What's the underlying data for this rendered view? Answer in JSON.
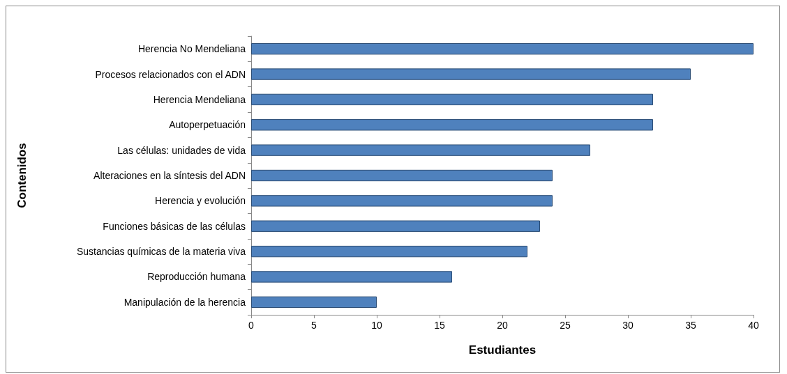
{
  "chart_data": {
    "type": "bar",
    "orientation": "horizontal",
    "xlabel": "Estudiantes",
    "ylabel": "Contenidos",
    "categories": [
      "Herencia No Mendeliana",
      "Procesos relacionados con el ADN",
      "Herencia Mendeliana",
      "Autoperpetuación",
      "Las células: unidades de vida",
      "Alteraciones en la síntesis del ADN",
      "Herencia y evolución",
      "Funciones básicas de las células",
      "Sustancias químicas de la materia viva",
      "Reproducción humana",
      "Manipulación de la herencia"
    ],
    "values": [
      40,
      35,
      32,
      32,
      27,
      24,
      24,
      23,
      22,
      16,
      10
    ],
    "color": "#4f81bd",
    "xlim": [
      0,
      40
    ],
    "xticks": [
      0,
      5,
      10,
      15,
      20,
      25,
      30,
      35,
      40
    ],
    "grid": false
  }
}
